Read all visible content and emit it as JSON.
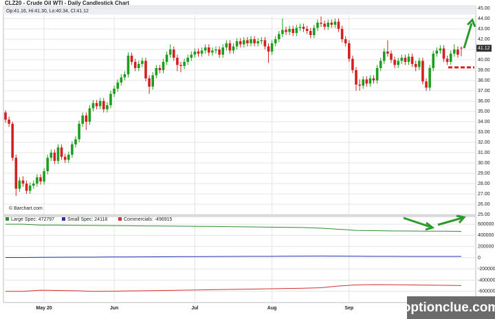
{
  "chart_data": {
    "type": "candlestick",
    "title": "CLZ20 - Crude Oil WTI - Daily Candlestick Chart",
    "ohlc_text": "Op:41.16, Hi:41.30, Lo:40.34, Cl:41.12",
    "source": "© Barchart.com",
    "watermark": "optionclue.com",
    "up_color": "#1e9e1e",
    "down_color": "#d42020",
    "candles": [
      [
        34.9,
        35.1,
        33.9,
        34.2
      ],
      [
        34.2,
        34.5,
        33.5,
        33.8
      ],
      [
        33.8,
        34.0,
        30.2,
        30.5
      ],
      [
        30.5,
        30.8,
        26.8,
        27.5
      ],
      [
        27.5,
        28.6,
        27.2,
        28.3
      ],
      [
        28.3,
        28.7,
        27.7,
        28.0
      ],
      [
        28.0,
        28.3,
        27.0,
        27.3
      ],
      [
        27.3,
        28.1,
        27.0,
        27.8
      ],
      [
        27.8,
        28.3,
        27.5,
        28.0
      ],
      [
        28.0,
        28.9,
        27.7,
        28.6
      ],
      [
        28.6,
        28.9,
        27.9,
        28.2
      ],
      [
        28.2,
        29.5,
        27.9,
        29.2
      ],
      [
        29.2,
        30.8,
        28.9,
        30.5
      ],
      [
        30.5,
        31.3,
        30.2,
        31.0
      ],
      [
        31.0,
        31.3,
        29.9,
        30.2
      ],
      [
        30.2,
        31.8,
        29.9,
        31.5
      ],
      [
        31.5,
        31.8,
        30.3,
        30.6
      ],
      [
        30.6,
        30.9,
        30.0,
        30.3
      ],
      [
        30.3,
        31.1,
        30.0,
        30.8
      ],
      [
        30.8,
        32.1,
        30.5,
        31.8
      ],
      [
        31.8,
        32.6,
        31.5,
        32.3
      ],
      [
        32.3,
        34.1,
        32.0,
        33.8
      ],
      [
        33.8,
        34.9,
        33.5,
        34.6
      ],
      [
        34.6,
        34.9,
        33.2,
        34.0
      ],
      [
        34.0,
        35.6,
        33.7,
        35.3
      ],
      [
        35.3,
        36.1,
        35.0,
        35.8
      ],
      [
        35.8,
        36.1,
        35.2,
        35.5
      ],
      [
        35.5,
        36.3,
        35.2,
        36.0
      ],
      [
        36.0,
        36.3,
        34.9,
        35.2
      ],
      [
        35.2,
        35.9,
        34.9,
        35.6
      ],
      [
        35.6,
        37.0,
        35.3,
        36.7
      ],
      [
        36.7,
        37.5,
        36.4,
        37.2
      ],
      [
        37.2,
        38.1,
        36.9,
        37.8
      ],
      [
        37.8,
        38.6,
        37.5,
        38.3
      ],
      [
        38.3,
        38.9,
        38.0,
        38.6
      ],
      [
        38.6,
        40.7,
        38.3,
        40.4
      ],
      [
        40.4,
        40.7,
        39.5,
        39.8
      ],
      [
        39.8,
        40.1,
        38.9,
        39.2
      ],
      [
        39.2,
        39.9,
        38.9,
        39.6
      ],
      [
        39.6,
        40.2,
        39.3,
        39.9
      ],
      [
        39.9,
        40.2,
        37.9,
        38.2
      ],
      [
        38.2,
        38.5,
        36.7,
        37.4
      ],
      [
        37.4,
        38.8,
        37.1,
        38.5
      ],
      [
        38.5,
        39.5,
        38.2,
        39.2
      ],
      [
        39.2,
        39.5,
        38.7,
        39.0
      ],
      [
        39.0,
        40.1,
        38.7,
        39.8
      ],
      [
        39.8,
        40.8,
        39.5,
        40.5
      ],
      [
        40.5,
        41.5,
        40.2,
        41.0
      ],
      [
        41.0,
        41.3,
        39.9,
        40.2
      ],
      [
        40.2,
        40.5,
        38.9,
        39.5
      ],
      [
        39.5,
        39.8,
        38.8,
        39.4
      ],
      [
        39.4,
        40.1,
        39.1,
        39.8
      ],
      [
        39.8,
        40.5,
        39.5,
        40.2
      ],
      [
        40.2,
        40.8,
        39.9,
        40.5
      ],
      [
        40.5,
        41.1,
        40.2,
        40.8
      ],
      [
        40.8,
        41.1,
        40.3,
        40.6
      ],
      [
        40.6,
        41.2,
        40.3,
        40.9
      ],
      [
        40.9,
        41.5,
        40.6,
        41.2
      ],
      [
        41.2,
        41.5,
        40.4,
        40.7
      ],
      [
        40.7,
        41.2,
        40.4,
        40.9
      ],
      [
        40.9,
        41.3,
        40.6,
        41.0
      ],
      [
        41.0,
        41.3,
        40.2,
        40.5
      ],
      [
        40.5,
        41.5,
        40.2,
        41.2
      ],
      [
        41.2,
        41.9,
        40.9,
        41.6
      ],
      [
        41.6,
        41.9,
        40.6,
        40.9
      ],
      [
        40.9,
        41.6,
        40.6,
        41.3
      ],
      [
        41.3,
        42.1,
        41.0,
        41.8
      ],
      [
        41.8,
        42.1,
        41.2,
        41.5
      ],
      [
        41.5,
        42.2,
        41.2,
        41.9
      ],
      [
        41.9,
        42.2,
        41.3,
        41.6
      ],
      [
        41.6,
        42.3,
        41.3,
        42.0
      ],
      [
        42.0,
        42.3,
        41.3,
        41.6
      ],
      [
        41.6,
        42.1,
        41.3,
        41.8
      ],
      [
        41.8,
        42.2,
        41.5,
        41.9
      ],
      [
        41.9,
        42.2,
        41.0,
        41.3
      ],
      [
        41.3,
        41.6,
        39.7,
        40.8
      ],
      [
        40.8,
        41.9,
        40.5,
        41.6
      ],
      [
        41.6,
        42.3,
        41.3,
        42.0
      ],
      [
        42.0,
        42.8,
        41.7,
        42.5
      ],
      [
        42.5,
        44.0,
        42.2,
        42.9
      ],
      [
        42.9,
        43.2,
        42.4,
        42.7
      ],
      [
        42.7,
        43.3,
        42.4,
        43.0
      ],
      [
        43.0,
        43.3,
        42.3,
        42.6
      ],
      [
        42.6,
        43.4,
        42.3,
        43.1
      ],
      [
        43.1,
        43.5,
        42.8,
        43.2
      ],
      [
        43.2,
        43.5,
        42.7,
        43.0
      ],
      [
        43.0,
        43.3,
        42.5,
        42.8
      ],
      [
        42.8,
        43.1,
        42.1,
        42.4
      ],
      [
        42.4,
        43.4,
        42.1,
        43.1
      ],
      [
        43.1,
        43.9,
        42.8,
        43.6
      ],
      [
        43.6,
        44.2,
        43.2,
        43.5
      ],
      [
        43.5,
        43.8,
        42.9,
        43.2
      ],
      [
        43.2,
        43.9,
        42.9,
        43.6
      ],
      [
        43.6,
        43.9,
        43.1,
        43.4
      ],
      [
        43.4,
        44.0,
        43.1,
        43.7
      ],
      [
        43.7,
        44.0,
        42.7,
        43.0
      ],
      [
        43.0,
        43.3,
        41.7,
        42.0
      ],
      [
        42.0,
        42.3,
        41.3,
        41.6
      ],
      [
        41.6,
        41.9,
        39.8,
        40.1
      ],
      [
        40.1,
        40.4,
        38.7,
        39.0
      ],
      [
        39.0,
        39.3,
        37.0,
        37.6
      ],
      [
        37.6,
        38.1,
        37.0,
        37.5
      ],
      [
        37.5,
        38.4,
        37.2,
        38.1
      ],
      [
        38.1,
        38.4,
        37.4,
        37.7
      ],
      [
        37.7,
        38.5,
        37.4,
        38.2
      ],
      [
        38.2,
        38.5,
        37.7,
        38.0
      ],
      [
        38.0,
        39.5,
        37.7,
        39.2
      ],
      [
        39.2,
        40.2,
        38.9,
        39.9
      ],
      [
        39.9,
        41.1,
        39.6,
        40.8
      ],
      [
        40.8,
        41.9,
        40.3,
        40.6
      ],
      [
        40.6,
        40.9,
        39.7,
        40.0
      ],
      [
        40.0,
        40.3,
        39.2,
        39.5
      ],
      [
        39.5,
        40.2,
        39.2,
        39.9
      ],
      [
        39.9,
        40.5,
        39.6,
        40.2
      ],
      [
        40.2,
        40.5,
        39.5,
        39.8
      ],
      [
        39.8,
        40.6,
        39.5,
        40.3
      ],
      [
        40.3,
        40.6,
        39.3,
        39.6
      ],
      [
        39.6,
        39.9,
        38.9,
        39.3
      ],
      [
        39.3,
        40.2,
        39.0,
        39.9
      ],
      [
        39.9,
        40.2,
        37.6,
        37.9
      ],
      [
        37.9,
        38.2,
        37.0,
        37.3
      ],
      [
        37.3,
        39.5,
        37.0,
        39.2
      ],
      [
        39.2,
        40.9,
        38.9,
        40.6
      ],
      [
        40.6,
        41.2,
        40.3,
        40.9
      ],
      [
        40.9,
        41.4,
        40.6,
        41.1
      ],
      [
        41.1,
        41.4,
        39.8,
        40.1
      ],
      [
        40.1,
        40.4,
        39.5,
        39.8
      ],
      [
        39.8,
        40.9,
        39.5,
        40.6
      ],
      [
        40.6,
        41.5,
        40.3,
        41.0
      ],
      [
        41.0,
        41.3,
        40.2,
        40.5
      ],
      [
        41.16,
        41.3,
        40.34,
        41.12
      ]
    ],
    "ylim": [
      25,
      45
    ],
    "yticks": [
      {
        "value": 45,
        "label": "45.00"
      },
      {
        "value": 44,
        "label": "44.00"
      },
      {
        "value": 43,
        "label": "43.00"
      },
      {
        "value": 42,
        "label": "42.00"
      },
      {
        "value": 41,
        "label": "41.00"
      },
      {
        "value": 40,
        "label": "40.00"
      },
      {
        "value": 39,
        "label": "39.00"
      },
      {
        "value": 38,
        "label": "38.00"
      },
      {
        "value": 37,
        "label": "37.00"
      },
      {
        "value": 36,
        "label": "36.00"
      },
      {
        "value": 35,
        "label": "35.00"
      },
      {
        "value": 34,
        "label": "34.00"
      },
      {
        "value": 33,
        "label": "33.00"
      },
      {
        "value": 32,
        "label": "32.00"
      },
      {
        "value": 31,
        "label": "31.00"
      },
      {
        "value": 30,
        "label": "30.00"
      },
      {
        "value": 29,
        "label": "29.00"
      },
      {
        "value": 28,
        "label": "28.00"
      },
      {
        "value": 27,
        "label": "27.00"
      },
      {
        "value": 26,
        "label": "26.00"
      },
      {
        "value": 25,
        "label": "25.00"
      }
    ],
    "xticks": [
      {
        "value": 11,
        "label": "May 20"
      },
      {
        "value": 31,
        "label": "Jun"
      },
      {
        "value": 54,
        "label": "Jul"
      },
      {
        "value": 76,
        "label": "Aug"
      },
      {
        "value": 98,
        "label": "Sep"
      }
    ],
    "cot": {
      "x": [
        0,
        5,
        10,
        15,
        20,
        25,
        30,
        35,
        40,
        45,
        50,
        55,
        60,
        65,
        70,
        75,
        80,
        85,
        90,
        95,
        100,
        105,
        110,
        115,
        120,
        125,
        130
      ],
      "ylim": [
        -800000,
        700000
      ],
      "yticks": [
        600000,
        400000,
        200000,
        0,
        -200000,
        -400000,
        -600000
      ],
      "series": [
        {
          "name": "Large Spec: 472797",
          "color": "#2e8b2e",
          "values": [
            600000,
            600000,
            585000,
            585000,
            580000,
            578000,
            575000,
            572000,
            570000,
            568000,
            565000,
            562000,
            560000,
            555000,
            552000,
            548000,
            545000,
            540000,
            530000,
            510000,
            490000,
            485000,
            480000,
            478000,
            476000,
            475000,
            472797
          ]
        },
        {
          "name": "Small Spec: 24118",
          "color": "#2233aa",
          "values": [
            5000,
            6000,
            8000,
            10000,
            12000,
            12000,
            14000,
            15000,
            16000,
            18000,
            20000,
            20000,
            22000,
            24000,
            25000,
            26000,
            28000,
            30000,
            32000,
            30000,
            28000,
            26000,
            25000,
            24000,
            24500,
            24000,
            24118
          ]
        },
        {
          "name": "Commercials: -496915",
          "color": "#d43030",
          "values": [
            -600000,
            -600000,
            -580000,
            -585000,
            -590000,
            -600000,
            -598000,
            -592000,
            -590000,
            -585000,
            -580000,
            -575000,
            -570000,
            -565000,
            -560000,
            -555000,
            -550000,
            -545000,
            -535000,
            -505000,
            -485000,
            -480000,
            -482000,
            -485000,
            -490000,
            -492000,
            -496915
          ]
        }
      ]
    }
  }
}
